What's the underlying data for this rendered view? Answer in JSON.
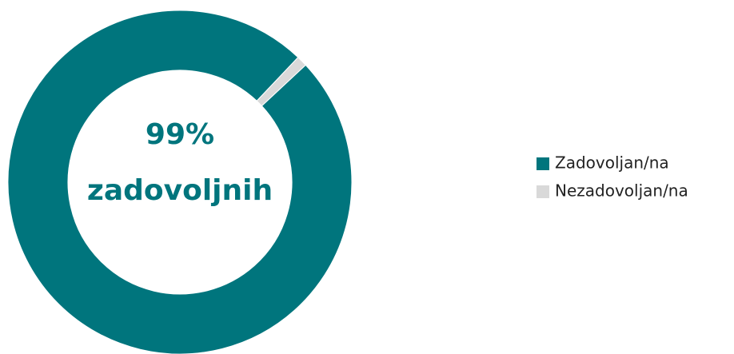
{
  "chart_data": {
    "type": "donut",
    "categories": [
      "Zadovoljan/na",
      "Nezadovoljan/na"
    ],
    "values": [
      99,
      1
    ],
    "colors": [
      "#00757d",
      "#d9d9d9"
    ],
    "start_angle": 47,
    "center_labels": [
      "99%",
      "zadovoljnih"
    ],
    "legend": "right"
  }
}
